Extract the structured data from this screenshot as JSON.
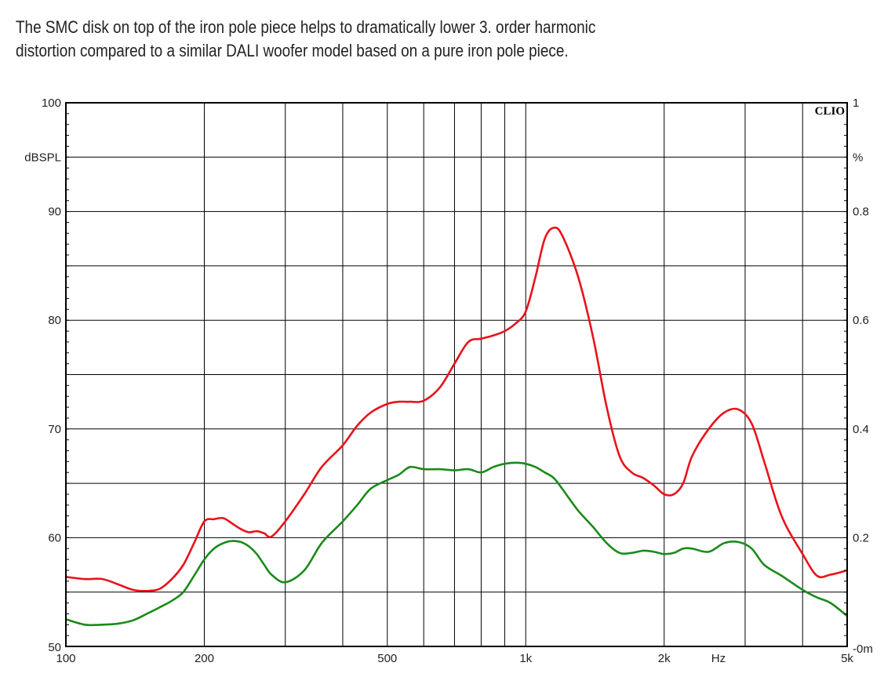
{
  "caption": {
    "line1": "The SMC disk on top of the iron pole piece helps to dramatically lower 3. order harmonic",
    "line2": "distortion compared to a similar DALI woofer model based on a pure iron pole piece."
  },
  "chart_data": {
    "type": "line",
    "title": "",
    "xscale": "log",
    "xlim": [
      100,
      5000
    ],
    "ylim": [
      50,
      100
    ],
    "ylim_right": [
      0,
      1
    ],
    "x_ticks": [
      {
        "value": 100,
        "label": "100"
      },
      {
        "value": 200,
        "label": "200"
      },
      {
        "value": 500,
        "label": "500"
      },
      {
        "value": 1000,
        "label": "1k"
      },
      {
        "value": 2000,
        "label": "2k"
      },
      {
        "value": 5000,
        "label": "5k"
      }
    ],
    "x_unit_label": "Hz",
    "y_left_ticks": [
      {
        "value": 100,
        "label": "100"
      },
      {
        "value": 90,
        "label": "90"
      },
      {
        "value": 80,
        "label": "80"
      },
      {
        "value": 70,
        "label": "70"
      },
      {
        "value": 60,
        "label": "60"
      },
      {
        "value": 50,
        "label": "50"
      }
    ],
    "y_left_unit": "dBSPL",
    "y_right_ticks": [
      {
        "value": 1,
        "label": "1"
      },
      {
        "value": 0.8,
        "label": "0.8"
      },
      {
        "value": 0.6,
        "label": "0.6"
      },
      {
        "value": 0.4,
        "label": "0.4"
      },
      {
        "value": 0.2,
        "label": "0.2"
      },
      {
        "value": 0,
        "label": "-0m"
      }
    ],
    "y_right_unit": "%",
    "brand": "CLIO",
    "grid": true,
    "series": [
      {
        "color": "#e8121b",
        "x": [
          100,
          110,
          120,
          130,
          140,
          150,
          160,
          170,
          180,
          190,
          200,
          210,
          220,
          230,
          240,
          250,
          260,
          270,
          280,
          300,
          330,
          360,
          400,
          430,
          460,
          500,
          530,
          560,
          600,
          650,
          700,
          750,
          800,
          850,
          900,
          950,
          1000,
          1050,
          1100,
          1150,
          1200,
          1300,
          1400,
          1500,
          1600,
          1700,
          1800,
          1900,
          2000,
          2100,
          2200,
          2300,
          2500,
          2700,
          2900,
          3100,
          3300,
          3600,
          4000,
          4300,
          4600,
          5000
        ],
        "values": [
          56.4,
          56.2,
          56.2,
          55.7,
          55.2,
          55.1,
          55.3,
          56.2,
          57.5,
          59.5,
          61.5,
          61.7,
          61.8,
          61.3,
          60.8,
          60.5,
          60.6,
          60.4,
          60.1,
          61.5,
          64.0,
          66.5,
          68.5,
          70.3,
          71.5,
          72.3,
          72.5,
          72.5,
          72.6,
          73.8,
          76.0,
          78.0,
          78.3,
          78.6,
          79.0,
          79.7,
          80.8,
          84.0,
          87.5,
          88.5,
          87.8,
          84.0,
          78.5,
          72.0,
          67.5,
          66.0,
          65.5,
          64.8,
          64.0,
          64.0,
          65.0,
          67.5,
          70.0,
          71.5,
          71.8,
          70.5,
          67.0,
          62.0,
          58.5,
          56.5,
          56.6,
          57.0
        ]
      },
      {
        "color": "#1a8a1a",
        "x": [
          100,
          110,
          120,
          130,
          140,
          150,
          160,
          170,
          180,
          190,
          200,
          210,
          220,
          230,
          240,
          250,
          260,
          270,
          280,
          300,
          330,
          360,
          400,
          430,
          460,
          500,
          530,
          560,
          600,
          650,
          700,
          750,
          800,
          850,
          900,
          950,
          1000,
          1050,
          1100,
          1150,
          1200,
          1300,
          1400,
          1500,
          1600,
          1700,
          1800,
          1900,
          2000,
          2100,
          2200,
          2300,
          2500,
          2700,
          2900,
          3100,
          3300,
          3600,
          4000,
          4300,
          4600,
          5000
        ],
        "values": [
          52.5,
          52.0,
          52.0,
          52.1,
          52.4,
          53.0,
          53.6,
          54.2,
          55.0,
          56.5,
          58.0,
          59.0,
          59.5,
          59.7,
          59.6,
          59.2,
          58.5,
          57.5,
          56.6,
          55.9,
          57.0,
          59.5,
          61.5,
          63.0,
          64.5,
          65.3,
          65.8,
          66.5,
          66.3,
          66.3,
          66.2,
          66.3,
          66.0,
          66.5,
          66.8,
          66.9,
          66.8,
          66.5,
          66.0,
          65.5,
          64.5,
          62.5,
          61.0,
          59.5,
          58.6,
          58.6,
          58.8,
          58.7,
          58.5,
          58.6,
          59.0,
          59.0,
          58.7,
          59.5,
          59.6,
          59.0,
          57.5,
          56.5,
          55.2,
          54.5,
          54.0,
          52.8
        ]
      }
    ]
  }
}
